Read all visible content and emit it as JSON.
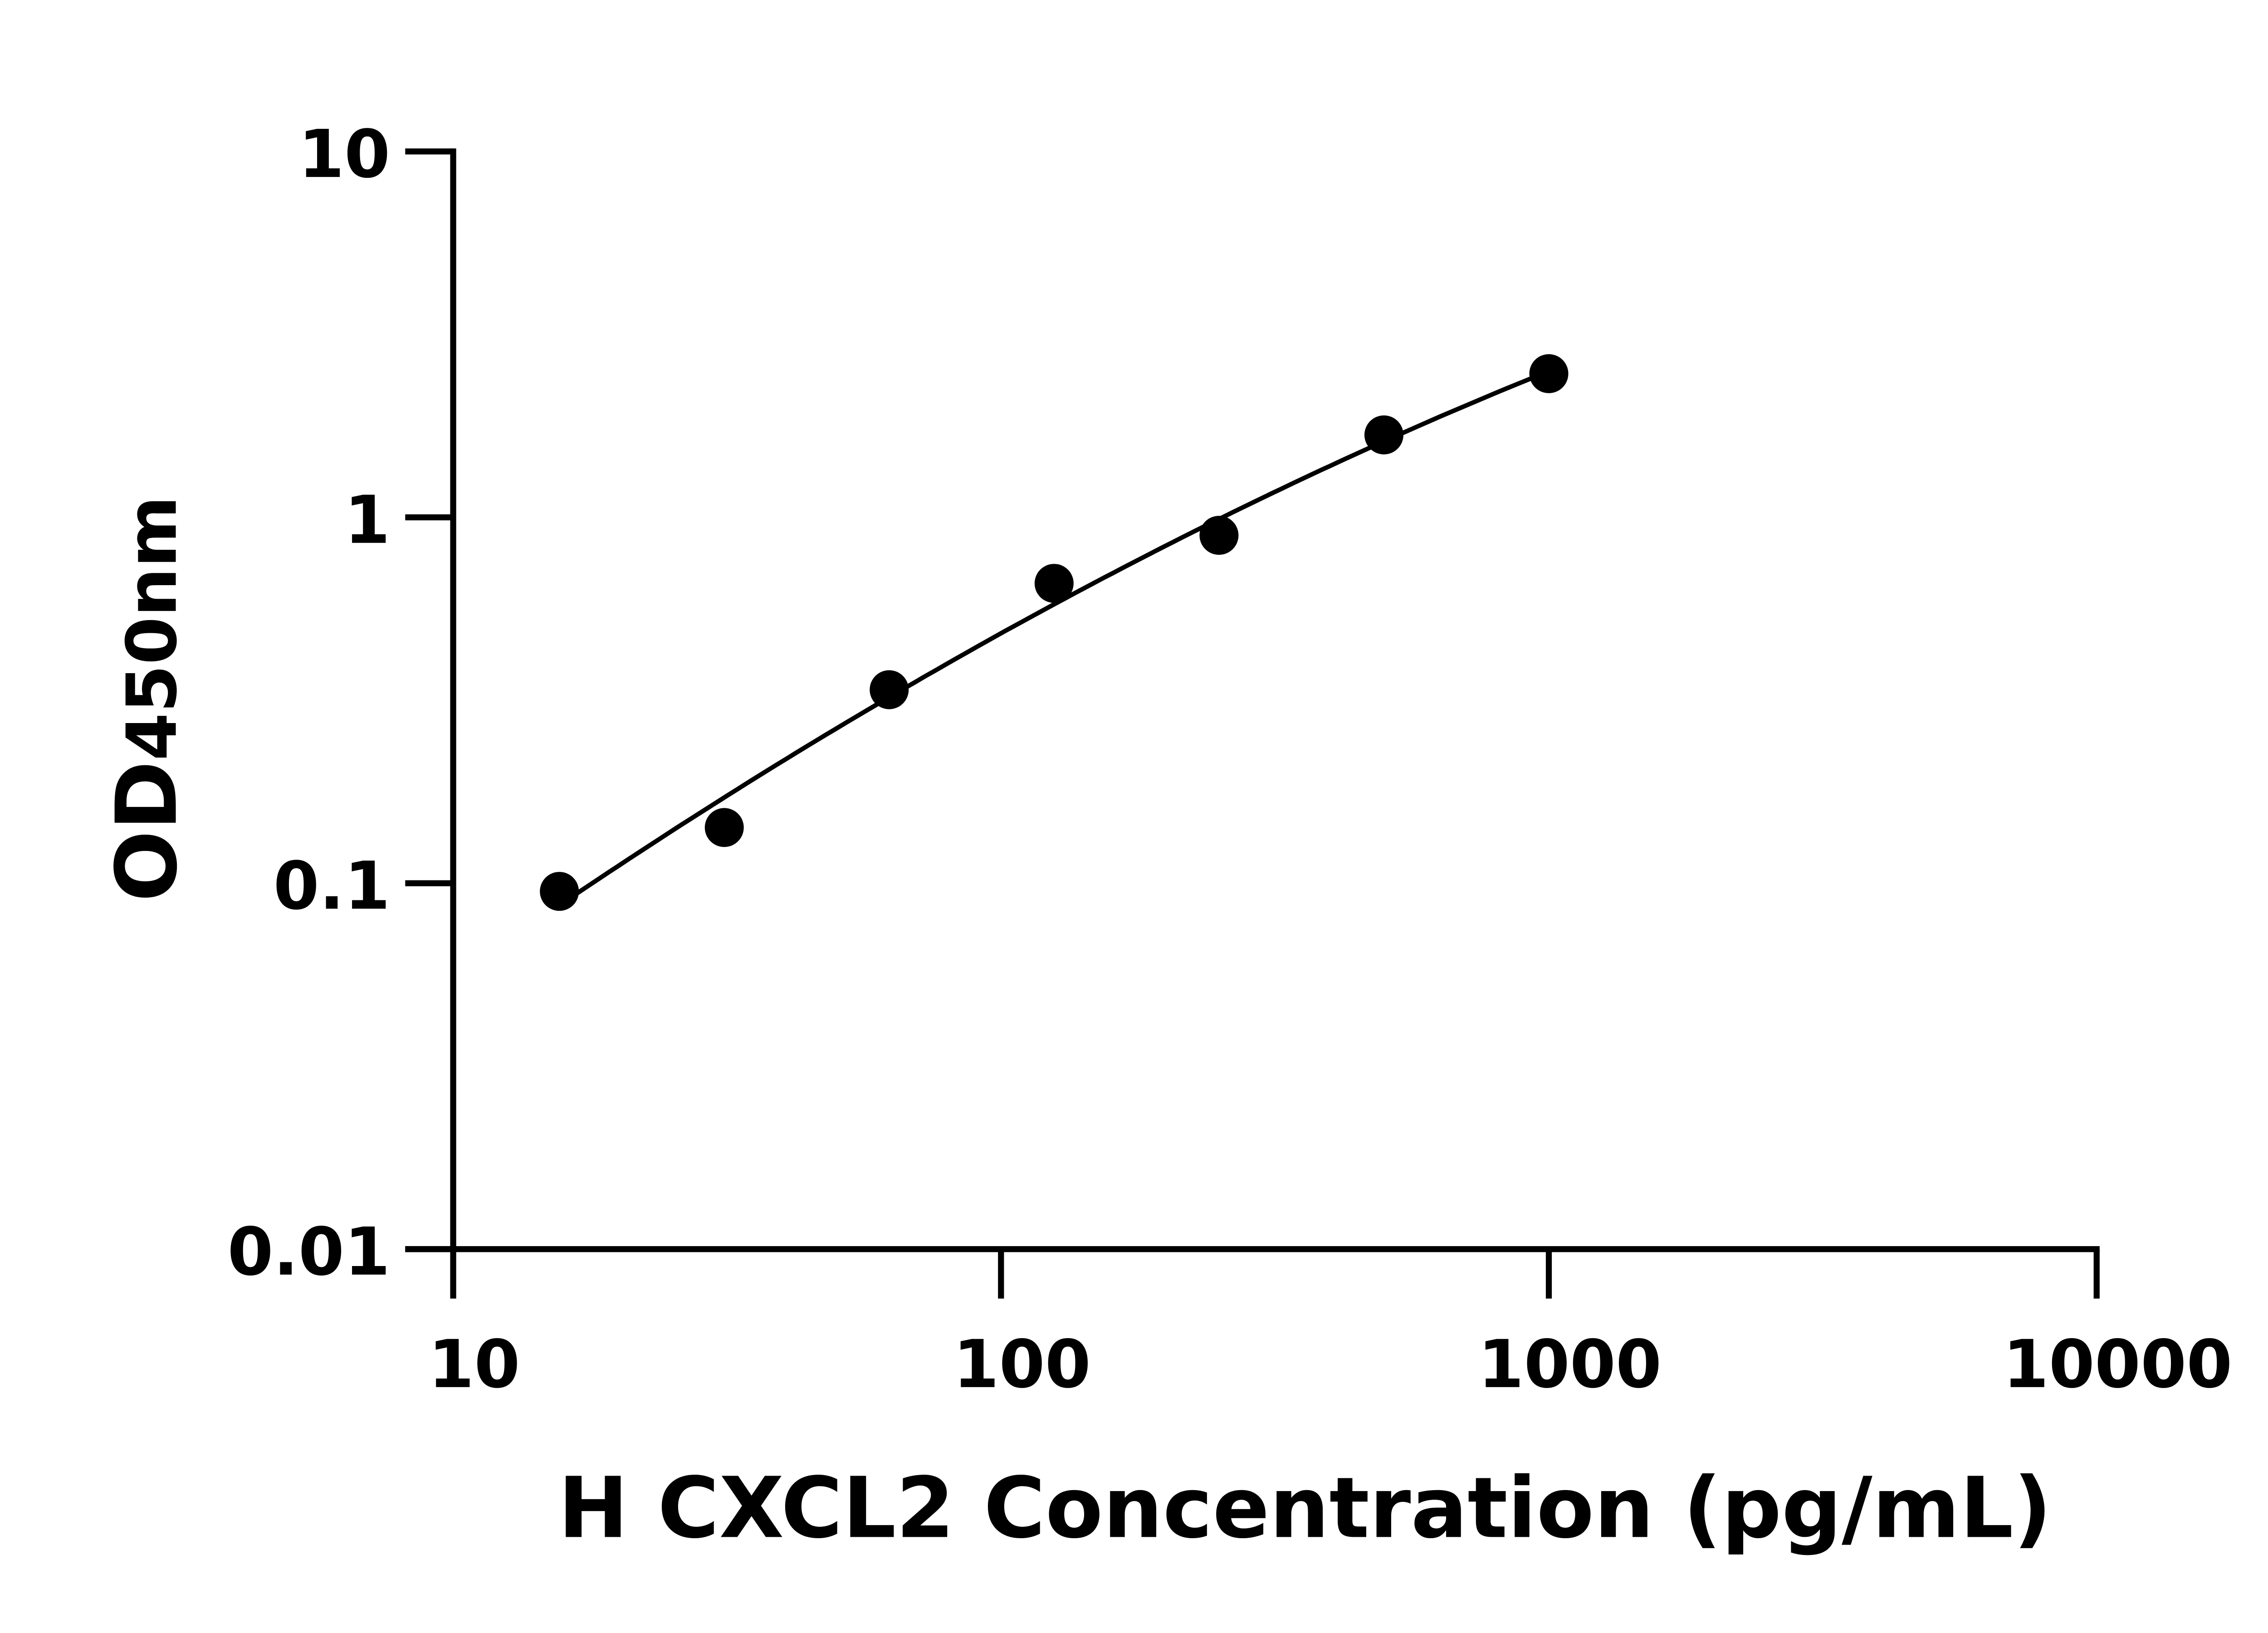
{
  "chart_data": {
    "type": "scatter",
    "title": "",
    "xlabel": "H CXCL2 Concentration (pg/mL)",
    "ylabel_main": "OD",
    "ylabel_sub": "450nm",
    "x_scale": "log",
    "y_scale": "log",
    "xlim": [
      10,
      10000
    ],
    "ylim": [
      0.01,
      10
    ],
    "x_ticks": [
      "10",
      "100",
      "1000",
      "10000"
    ],
    "y_ticks": [
      "0.01",
      "0.1",
      "1",
      "10"
    ],
    "grid": false,
    "fit_curve": true,
    "color": "#000000",
    "series": [
      {
        "x": [
          15.625,
          31.25,
          62.5,
          125,
          250,
          500,
          1000
        ],
        "y": [
          0.095,
          0.142,
          0.338,
          0.66,
          0.893,
          1.68,
          2.47
        ]
      }
    ]
  }
}
